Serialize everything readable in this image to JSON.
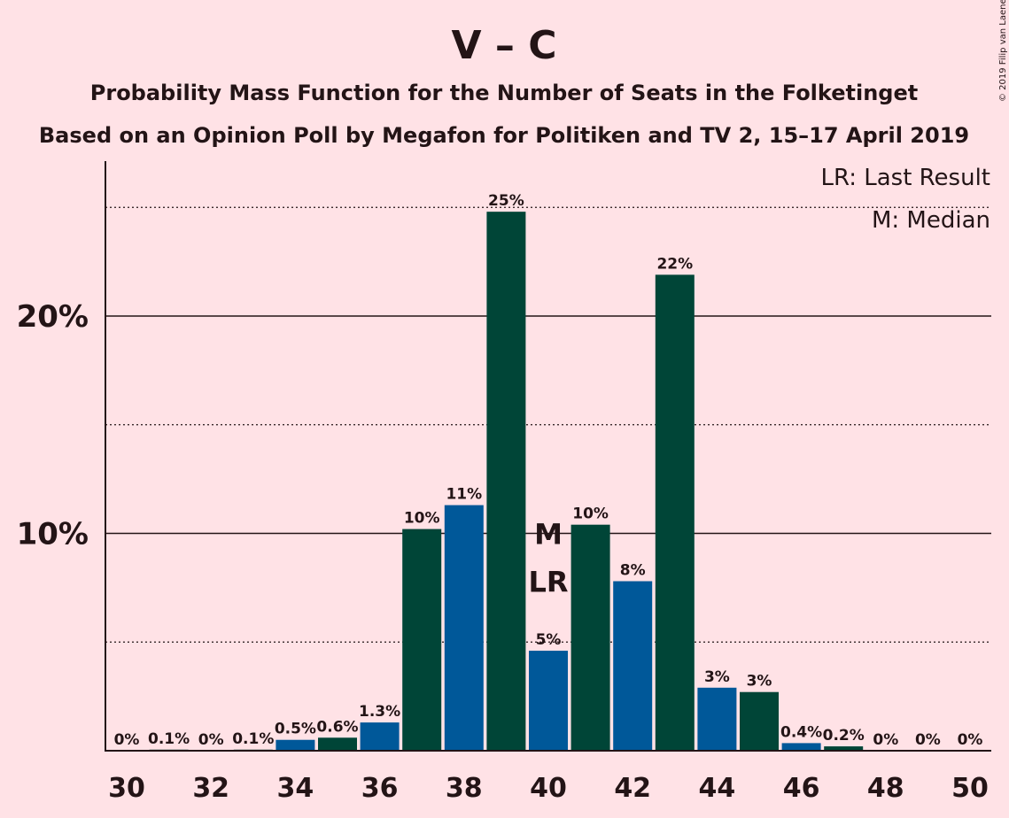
{
  "chart_data": {
    "type": "bar",
    "title": "V – C",
    "subtitle": "Probability Mass Function for the Number of Seats in the Folketinget",
    "subtitle2": "Based on an Opinion Poll by Megafon for Politiken and TV 2, 15–17 April 2019",
    "copyright": "© 2019 Filip van Laenen",
    "legend": {
      "position": "top-right",
      "last_result": "LR: Last Result",
      "median": "M: Median"
    },
    "x": [
      30,
      31,
      32,
      33,
      34,
      35,
      36,
      37,
      38,
      39,
      40,
      41,
      42,
      43,
      44,
      45,
      46,
      47,
      48,
      49,
      50
    ],
    "values": [
      0,
      0.05,
      0,
      0.05,
      0.5,
      0.6,
      1.3,
      10.2,
      11.3,
      24.8,
      4.6,
      10.4,
      7.8,
      21.9,
      2.9,
      2.7,
      0.35,
      0.2,
      0,
      0,
      0
    ],
    "labels": [
      "0%",
      "0.1%",
      "0%",
      "0.1%",
      "0.5%",
      "0.6%",
      "1.3%",
      "10%",
      "11%",
      "25%",
      "5%",
      "10%",
      "8%",
      "22%",
      "3%",
      "3%",
      "0.4%",
      "0.2%",
      "0%",
      "0%",
      "0%"
    ],
    "xticks": [
      30,
      32,
      34,
      36,
      38,
      40,
      42,
      44,
      46,
      48,
      50
    ],
    "yticks": [
      {
        "value": 10,
        "label": "10%"
      },
      {
        "value": 20,
        "label": "20%"
      }
    ],
    "dotted_lines": [
      5,
      15,
      25
    ],
    "ylim": [
      0,
      27
    ],
    "median_seat": 40,
    "median_marker": "M",
    "last_result_seat": 40,
    "last_result_marker": "LR",
    "colors": {
      "background": "#FFE2E6",
      "bar_blue": "#005899",
      "bar_green": "#004537",
      "text": "#231416"
    }
  }
}
